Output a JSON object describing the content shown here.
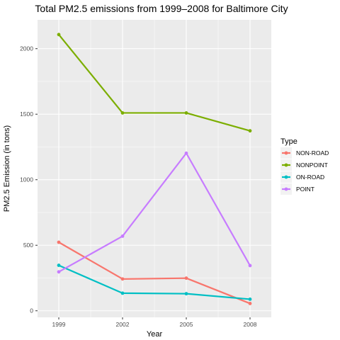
{
  "chart_data": {
    "type": "line",
    "title": "Total PM2.5 emissions from 1999–2008 for Baltimore City",
    "xlabel": "Year",
    "ylabel": "PM2.5 Emission (in tons)",
    "x": [
      1999,
      2002,
      2005,
      2008
    ],
    "x_tick_labels": [
      "1999",
      "2002",
      "2005",
      "2008"
    ],
    "y_ticks": [
      0,
      500,
      1000,
      1500,
      2000
    ],
    "y_tick_labels": [
      "0",
      "500",
      "1000",
      "1500",
      "2000"
    ],
    "ylim": [
      -50,
      2220
    ],
    "grid": true,
    "legend": {
      "title": "Type",
      "position": "right"
    },
    "series": [
      {
        "name": "NON-ROAD",
        "color": "#F8766D",
        "values": [
          522.9,
          242.7,
          248.9,
          55.8
        ]
      },
      {
        "name": "NONPOINT",
        "color": "#7CAE00",
        "values": [
          2107.6,
          1509.5,
          1509.5,
          1373.2
        ]
      },
      {
        "name": "ON-ROAD",
        "color": "#00BFC4",
        "values": [
          346.8,
          134.3,
          130.4,
          88.3
        ]
      },
      {
        "name": "POINT",
        "color": "#C77CFF",
        "values": [
          296.8,
          569.3,
          1202.5,
          344.98
        ]
      }
    ]
  }
}
